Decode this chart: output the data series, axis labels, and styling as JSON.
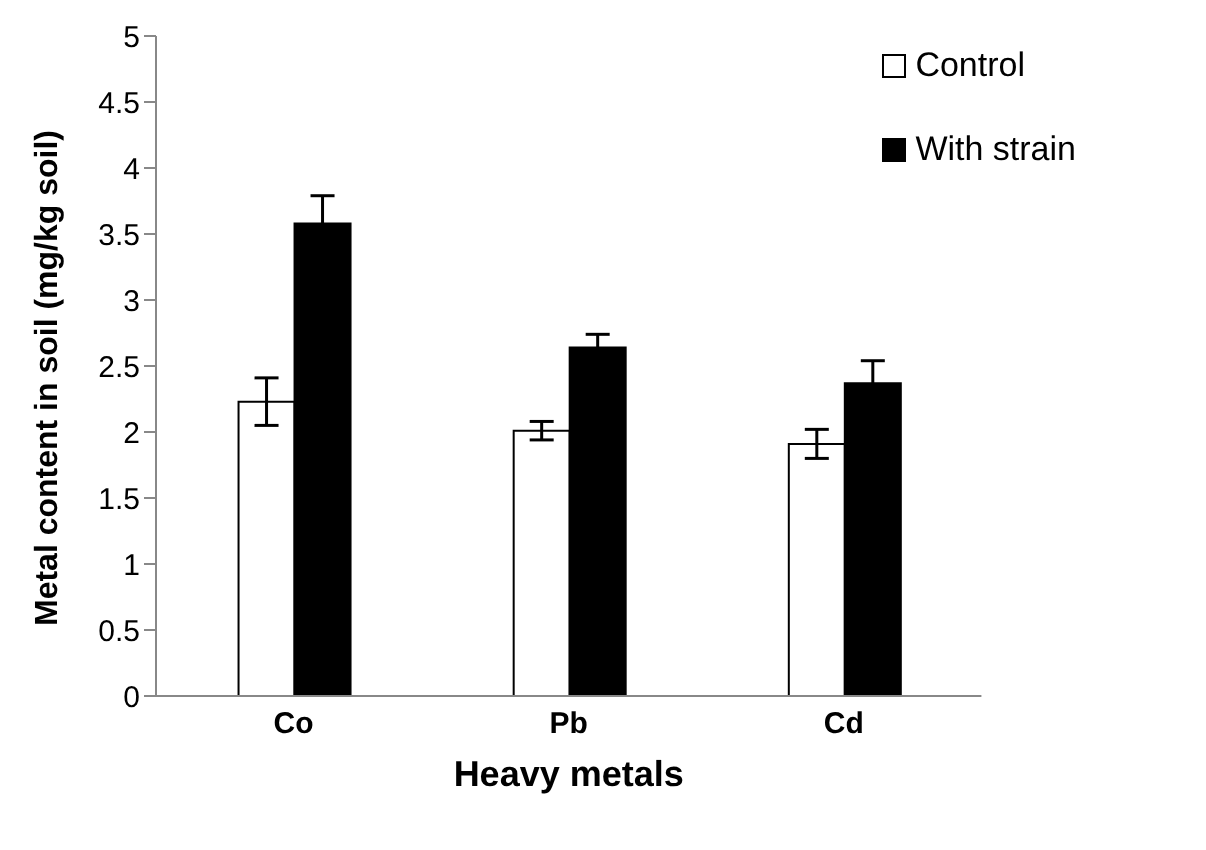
{
  "chart_data": {
    "type": "bar",
    "xlabel": "Heavy metals",
    "ylabel": "Metal content in soil (mg/kg soil)",
    "categories": [
      "Co",
      "Pb",
      "Cd"
    ],
    "series": [
      {
        "name": "Control",
        "color": "#ffffff",
        "values": [
          2.23,
          2.01,
          1.91
        ],
        "errors": [
          0.18,
          0.07,
          0.11
        ]
      },
      {
        "name": "With strain",
        "color": "#000000",
        "values": [
          3.58,
          2.64,
          2.37
        ],
        "errors": [
          0.21,
          0.1,
          0.17
        ]
      }
    ],
    "ylim": [
      0,
      5
    ],
    "yticks": [
      0,
      0.5,
      1,
      1.5,
      2,
      2.5,
      3,
      3.5,
      4,
      4.5,
      5
    ],
    "grid": false,
    "legend": "top right"
  }
}
